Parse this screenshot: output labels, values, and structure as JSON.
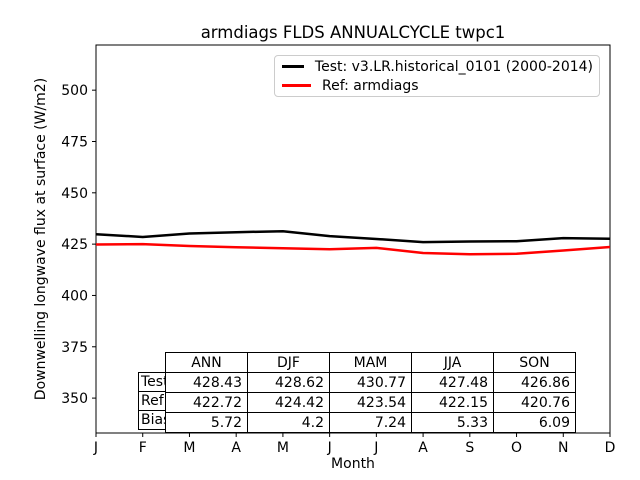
{
  "chart_data": {
    "type": "line",
    "title": "armdiags FLDS ANNUALCYCLE twpc1",
    "xlabel": "Month",
    "ylabel": "Downwelling longwave flux at surface (W/m2)",
    "x_tick_labels": [
      "J",
      "F",
      "M",
      "A",
      "M",
      "J",
      "J",
      "A",
      "S",
      "O",
      "N",
      "D"
    ],
    "y_ticks": [
      350,
      375,
      400,
      425,
      450,
      475,
      500
    ],
    "ylim": [
      333,
      522
    ],
    "grid": false,
    "legend_position": "upper right",
    "series": [
      {
        "name": "Test: v3.LR.historical_0101 (2000-2014)",
        "color": "#000000",
        "values": [
          429.8,
          428.5,
          430.2,
          430.8,
          431.3,
          428.9,
          427.5,
          426.0,
          426.3,
          426.4,
          427.9,
          427.6
        ]
      },
      {
        "name": "Ref: armdiags",
        "color": "#ff0000",
        "values": [
          424.8,
          425.0,
          424.1,
          423.5,
          423.0,
          422.5,
          423.2,
          420.7,
          420.1,
          420.3,
          421.9,
          423.6
        ]
      }
    ]
  },
  "legend": {
    "entries": [
      {
        "label": "Test: v3.LR.historical_0101 (2000-2014)",
        "color": "#000000"
      },
      {
        "label": "Ref: armdiags",
        "color": "#ff0000"
      }
    ]
  },
  "stats_table": {
    "col_headers": [
      "ANN",
      "DJF",
      "MAM",
      "JJA",
      "SON"
    ],
    "rows": [
      {
        "label": "Test",
        "values": [
          "428.43",
          "428.62",
          "430.77",
          "427.48",
          "426.86"
        ]
      },
      {
        "label": "Ref",
        "values": [
          "422.72",
          "424.42",
          "423.54",
          "422.15",
          "420.76"
        ]
      },
      {
        "label": "Bias",
        "values": [
          "5.72",
          "4.2",
          "7.24",
          "5.33",
          "6.09"
        ]
      }
    ]
  }
}
